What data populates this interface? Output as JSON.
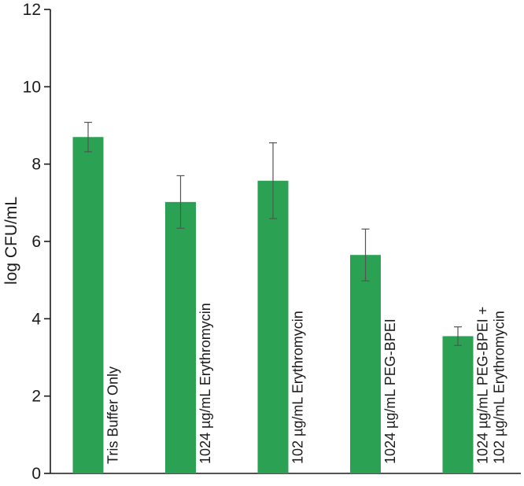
{
  "chart_data": {
    "type": "bar",
    "title": "",
    "xlabel": "",
    "ylabel": "log CFU/mL",
    "ylim": [
      0,
      12
    ],
    "yticks": [
      0,
      2,
      4,
      6,
      8,
      10,
      12
    ],
    "grid": false,
    "legend": "none",
    "bar_color": "#2ba153",
    "error_color": "#555555",
    "categories": [
      [
        "Tris Buffer Only"
      ],
      [
        "1024 µg/mL Erythromycin"
      ],
      [
        "102 µg/mL Erythromycin"
      ],
      [
        "1024 µg/mL PEG-BPEI"
      ],
      [
        "1024 µg/mL PEG-BPEI +",
        "102 µg/mL Erythromycin"
      ]
    ],
    "values": [
      8.7,
      7.02,
      7.57,
      5.65,
      3.55
    ],
    "errors": [
      0.38,
      0.68,
      0.98,
      0.67,
      0.24
    ]
  }
}
